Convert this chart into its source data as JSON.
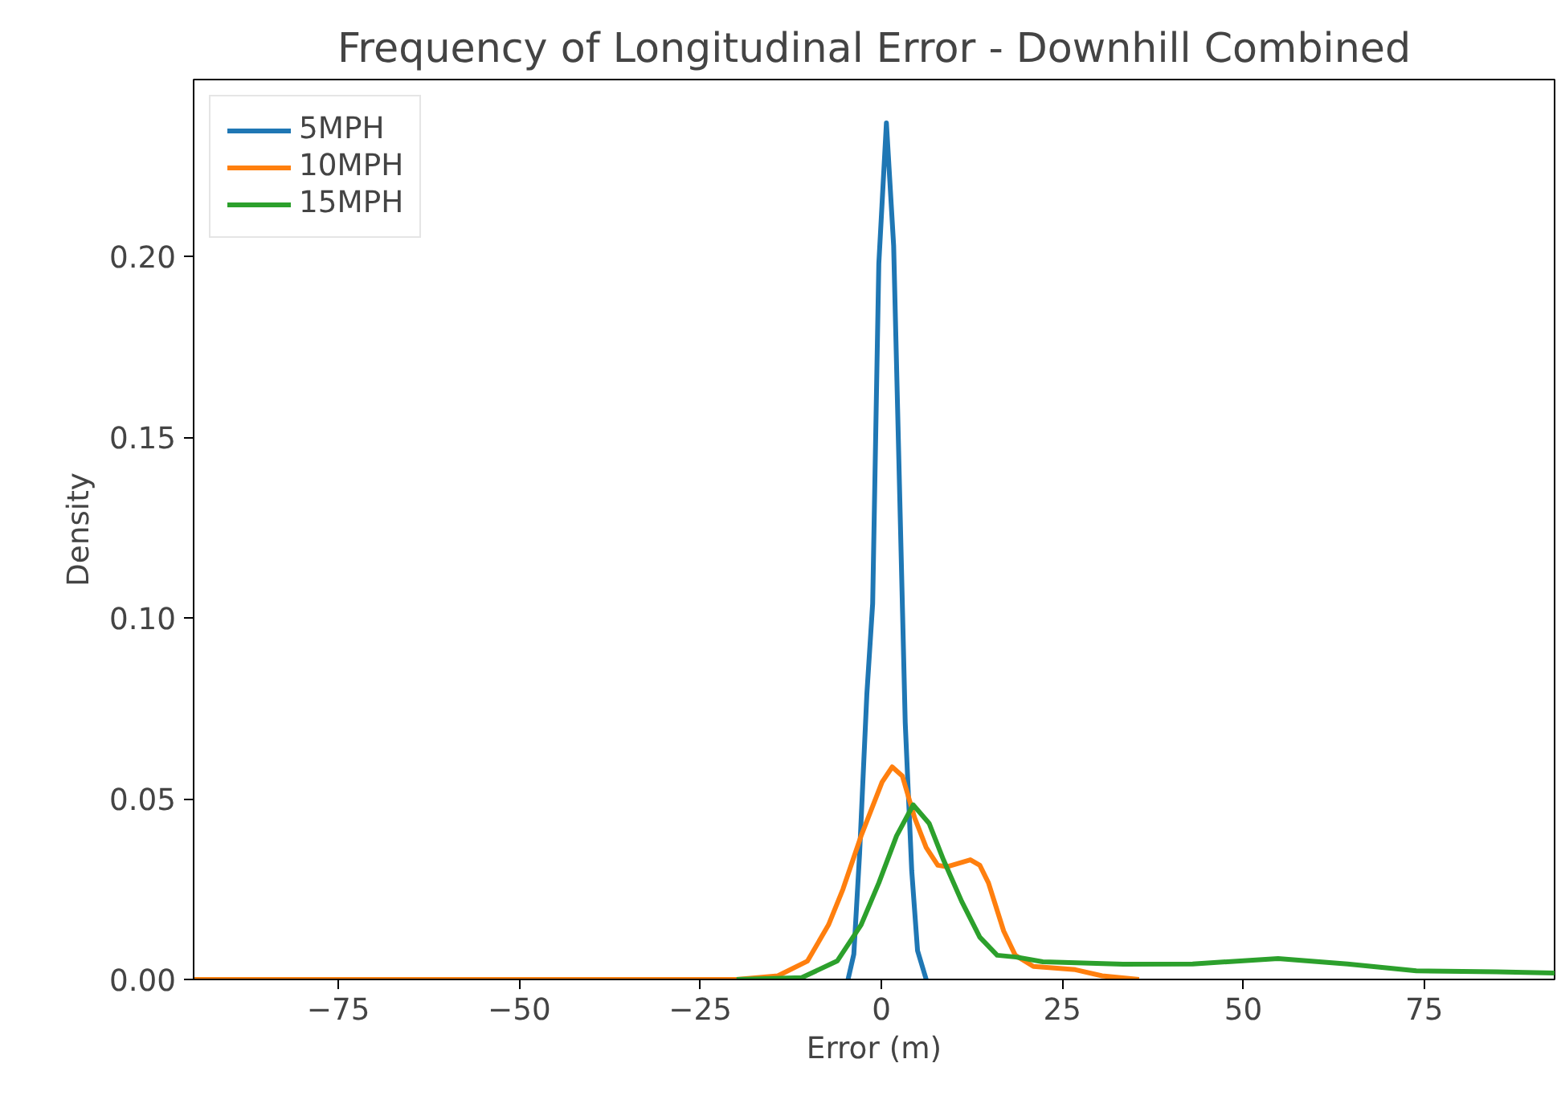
{
  "chart_data": {
    "type": "line",
    "title": "Frequency of Longitudinal Error - Downhill Combined",
    "xlabel": "Error (m)",
    "ylabel": "Density",
    "xlim": [
      -95,
      93
    ],
    "ylim": [
      0,
      0.249
    ],
    "xticks": [
      {
        "value": -75,
        "label": "−75"
      },
      {
        "value": -50,
        "label": "−50"
      },
      {
        "value": -25,
        "label": "−25"
      },
      0,
      25,
      50,
      75
    ],
    "yticks": [
      {
        "value": 0,
        "label": "0.00"
      },
      {
        "value": 0.05,
        "label": "0.05"
      },
      {
        "value": 0.1,
        "label": "0.10"
      },
      {
        "value": 0.15,
        "label": "0.15"
      },
      {
        "value": 0.2,
        "label": "0.20"
      }
    ],
    "grid": false,
    "legend": "top left",
    "marker": "none",
    "line_style": "solid",
    "series": [
      {
        "name": "5MPH",
        "color": "#1f77b4",
        "x": [
          -4.6,
          -3.8,
          -3.0,
          -2.0,
          -1.2,
          -0.35,
          0.7,
          1.7,
          2.5,
          3.3,
          4.2,
          5.0,
          6.2
        ],
        "values": [
          0,
          0.007,
          0.035,
          0.079,
          0.104,
          0.198,
          0.237,
          0.203,
          0.137,
          0.071,
          0.03,
          0.008,
          0
        ]
      },
      {
        "name": "10MPH",
        "color": "#ff7f0e",
        "x": [
          -95,
          -20,
          -14.3,
          -10.2,
          -7.3,
          -5.3,
          -2.8,
          0.1,
          1.5,
          2.9,
          4.6,
          6.2,
          7.8,
          9.1,
          12.3,
          13.6,
          14.8,
          16.9,
          18.5,
          21,
          26.8,
          30.5,
          35.6
        ],
        "values": [
          0,
          0,
          0.001,
          0.0051,
          0.0151,
          0.025,
          0.0397,
          0.0546,
          0.0588,
          0.0563,
          0.0447,
          0.0365,
          0.0316,
          0.0312,
          0.0331,
          0.0316,
          0.0267,
          0.0134,
          0.0067,
          0.0036,
          0.0027,
          0.001,
          0
        ]
      },
      {
        "name": "15MPH",
        "color": "#2ca02c",
        "x": [
          -20,
          -11,
          -6.1,
          -2.8,
          -0.35,
          2.1,
          4.4,
          6.6,
          8.6,
          11.1,
          13.6,
          16,
          18.6,
          22.3,
          33.4,
          43,
          54.8,
          64.4,
          73.9,
          85,
          93
        ],
        "values": [
          0,
          0.0005,
          0.0051,
          0.0151,
          0.0267,
          0.0397,
          0.0483,
          0.0432,
          0.033,
          0.0216,
          0.0117,
          0.0067,
          0.0062,
          0.0049,
          0.0042,
          0.0043,
          0.0058,
          0.0043,
          0.0024,
          0.0021,
          0.0018
        ]
      }
    ]
  }
}
